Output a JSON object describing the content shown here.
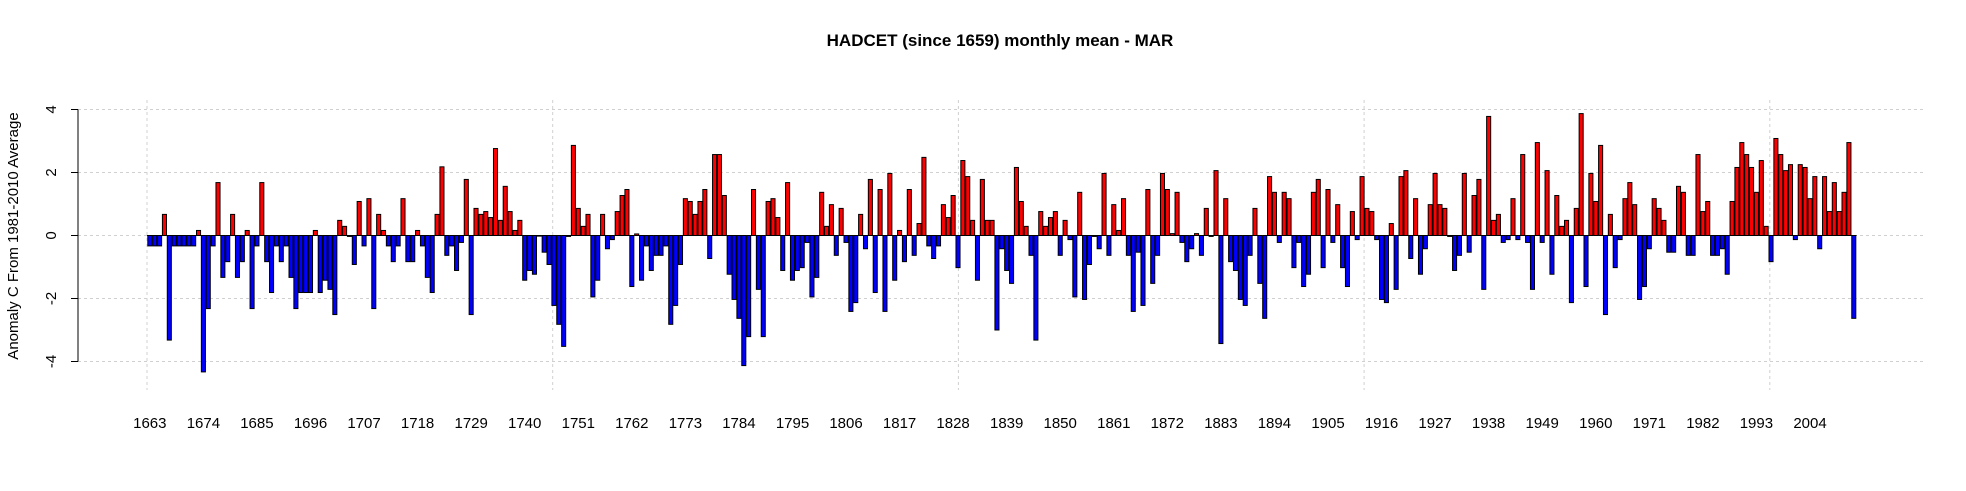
{
  "chart_data": {
    "type": "bar",
    "title": "HADCET (since 1659) monthly mean - MAR",
    "xlabel": "",
    "ylabel": "Anomaly C From 1981-2010 Average",
    "ylim": [
      -4.5,
      4.5
    ],
    "y_ticks": [
      -4,
      -2,
      0,
      2,
      4
    ],
    "y_tick_labels": [
      "-4",
      "-2",
      "0",
      "2",
      "4"
    ],
    "grid": true,
    "start_year": 1663,
    "end_year": 2013,
    "x_tick_labels": [
      "1663",
      "1674",
      "1685",
      "1696",
      "1707",
      "1718",
      "1729",
      "1740",
      "1751",
      "1762",
      "1773",
      "1784",
      "1795",
      "1806",
      "1817",
      "1828",
      "1839",
      "1850",
      "1861",
      "1872",
      "1883",
      "1894",
      "1905",
      "1916",
      "1927",
      "1938",
      "1949",
      "1960",
      "1971",
      "1982",
      "1993",
      "2004"
    ],
    "positive_color": "#ff0000",
    "negative_color": "#0000ff",
    "values": [
      -0.33,
      -0.33,
      -0.33,
      0.67,
      -3.32,
      -0.33,
      -0.33,
      -0.33,
      -0.33,
      -0.33,
      0.16,
      -4.33,
      -2.32,
      -0.33,
      1.68,
      -1.33,
      -0.83,
      0.67,
      -1.33,
      -0.83,
      0.16,
      -2.32,
      -0.33,
      1.68,
      -0.83,
      -1.81,
      -0.33,
      -0.83,
      -0.33,
      -1.33,
      -2.32,
      -1.81,
      -1.81,
      -1.81,
      0.16,
      -1.81,
      -1.42,
      -1.71,
      -2.51,
      0.48,
      0.29,
      -0.03,
      -0.92,
      1.08,
      -0.33,
      1.17,
      -2.32,
      0.67,
      0.16,
      -0.33,
      -0.83,
      -0.33,
      1.17,
      -0.83,
      -0.83,
      0.16,
      -0.33,
      -1.33,
      -1.81,
      0.67,
      2.18,
      -0.63,
      -0.33,
      -1.11,
      -0.22,
      1.78,
      -2.51,
      0.86,
      0.67,
      0.76,
      0.57,
      2.76,
      0.48,
      1.56,
      0.76,
      0.16,
      0.48,
      -1.42,
      -1.11,
      -1.23,
      -0.02,
      -0.53,
      -0.92,
      -2.22,
      -2.82,
      -3.52,
      -0.03,
      2.86,
      0.86,
      0.29,
      0.67,
      -1.95,
      -1.42,
      0.67,
      -0.42,
      -0.13,
      0.76,
      1.27,
      1.46,
      -1.62,
      0.05,
      -1.42,
      -0.33,
      -1.11,
      -0.63,
      -0.63,
      -0.33,
      -2.82,
      -2.22,
      -0.92,
      1.17,
      1.08,
      0.67,
      1.08,
      1.46,
      -0.73,
      2.57,
      2.57,
      1.27,
      -1.23,
      -2.03,
      -2.63,
      -4.13,
      -3.21,
      1.46,
      -1.71,
      -3.21,
      1.08,
      1.17,
      0.57,
      -1.11,
      1.68,
      -1.42,
      -1.11,
      -1.02,
      -0.22,
      -1.95,
      -1.33,
      1.37,
      0.29,
      0.98,
      -0.63,
      0.86,
      -0.22,
      -2.41,
      -2.13,
      0.67,
      -0.42,
      1.78,
      -1.81,
      1.46,
      -2.41,
      1.97,
      -1.42,
      0.16,
      -0.83,
      1.46,
      -0.63,
      0.38,
      2.48,
      -0.33,
      -0.73,
      -0.33,
      0.98,
      0.57,
      1.27,
      -1.02,
      2.38,
      1.87,
      0.48,
      -1.42,
      1.78,
      0.48,
      0.48,
      -3.0,
      -0.42,
      -1.11,
      -1.52,
      2.16,
      1.08,
      0.29,
      -0.63,
      -3.32,
      0.76,
      0.29,
      0.57,
      0.76,
      -0.63,
      0.48,
      -0.13,
      -1.95,
      1.37,
      -2.03,
      -0.92,
      -0.03,
      -0.42,
      1.97,
      -0.63,
      0.98,
      0.16,
      1.17,
      -0.63,
      -2.41,
      -0.53,
      -2.22,
      1.46,
      -1.52,
      -0.63,
      1.97,
      1.46,
      0.06,
      1.37,
      -0.22,
      -0.83,
      -0.42,
      0.06,
      -0.63,
      0.86,
      -0.03,
      2.06,
      -3.43,
      1.17,
      -0.83,
      -1.11,
      -2.03,
      -2.22,
      -0.63,
      0.86,
      -1.52,
      -2.63,
      1.87,
      1.37,
      -0.22,
      1.37,
      1.17,
      -1.02,
      -0.22,
      -1.62,
      -1.23,
      1.37,
      1.78,
      -1.02,
      1.46,
      -0.22,
      0.98,
      -1.02,
      -1.62,
      0.76,
      -0.13,
      1.87,
      0.86,
      0.76,
      -0.13,
      -2.03,
      -2.13,
      0.38,
      -1.71,
      1.87,
      2.06,
      -0.73,
      1.17,
      -1.23,
      -0.42,
      0.98,
      1.97,
      0.98,
      0.86,
      -0.03,
      -1.11,
      -0.63,
      1.97,
      -0.53,
      1.27,
      1.78,
      -1.71,
      3.78,
      0.48,
      0.67,
      -0.22,
      -0.13,
      1.17,
      -0.13,
      2.57,
      -0.22,
      -1.71,
      2.95,
      -0.22,
      2.06,
      -1.23,
      1.27,
      0.29,
      0.48,
      -2.13,
      0.86,
      3.87,
      -1.62,
      1.97,
      1.08,
      2.86,
      -2.51,
      0.67,
      -1.02,
      -0.13,
      1.17,
      1.68,
      0.98,
      -2.03,
      -1.62,
      -0.42,
      1.17,
      0.86,
      0.48,
      -0.53,
      -0.53,
      1.56,
      1.37,
      -0.63,
      -0.63,
      2.57,
      0.76,
      1.08,
      -0.63,
      -0.63,
      -0.42,
      -1.23,
      1.08,
      2.16,
      2.95,
      2.57,
      2.16,
      1.37,
      2.38,
      0.29,
      -0.83,
      3.08,
      2.57,
      2.06,
      2.25,
      -0.13,
      2.25,
      2.16,
      1.17,
      1.87,
      -0.42,
      1.87,
      0.76,
      1.68,
      0.76,
      1.37,
      2.95,
      -2.63
    ]
  }
}
